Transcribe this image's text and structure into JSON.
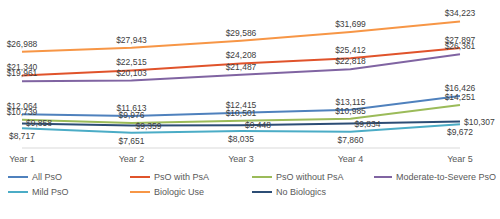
{
  "chart_data": {
    "type": "line",
    "categories": [
      "Year 1",
      "Year 2",
      "Year 3",
      "Year 4",
      "Year 5"
    ],
    "ylim": [
      4000,
      36000
    ],
    "tick_labels": "x",
    "data_labels": true,
    "legend": "bottom",
    "series": [
      {
        "name": "All PsO",
        "color": "#4f81bd",
        "values": [
          12064,
          11613,
          12415,
          13115,
          16426
        ],
        "value_labels": [
          "$12,064",
          "$11,613",
          "$12,415",
          "$13,115",
          "$16,426"
        ]
      },
      {
        "name": "PsO with PsA",
        "color": "#e0532b",
        "values": [
          21340,
          22515,
          24208,
          25412,
          27897
        ],
        "value_labels": [
          "$21,340",
          "$22,515",
          "$24,208",
          "$25,412",
          "$27,897"
        ]
      },
      {
        "name": "PsO without PsA",
        "color": "#9bbb59",
        "values": [
          10739,
          9976,
          10501,
          10985,
          14251
        ],
        "value_labels": [
          "$10,739",
          "$9,976",
          "$10,501",
          "$10,985",
          "$14,251"
        ]
      },
      {
        "name": "Moderate-to-Severe PsO",
        "color": "#8064a2",
        "values": [
          19961,
          20103,
          21487,
          22818,
          26361
        ],
        "value_labels": [
          "$19,961",
          "$20,103",
          "$21,487",
          "$22,818",
          "$26,361"
        ]
      },
      {
        "name": "Mild PsO",
        "color": "#4bacc6",
        "values": [
          8717,
          7651,
          8035,
          7860,
          9672
        ],
        "value_labels": [
          "$8,717",
          "$7,651",
          "$8,035",
          "$7,860",
          "$9,672"
        ]
      },
      {
        "name": "Biologic Use",
        "color": "#f79646",
        "values": [
          26988,
          27943,
          29586,
          31699,
          34223
        ],
        "value_labels": [
          "$26,988",
          "$27,943",
          "$29,586",
          "$31,699",
          "$34,223"
        ]
      },
      {
        "name": "No Biologics",
        "color": "#2c4d75",
        "values": [
          9858,
          9359,
          9448,
          9834,
          10307
        ],
        "value_labels": [
          "$9,858",
          "$9,359",
          "$9,448",
          "$9,834",
          "$10,307"
        ]
      }
    ]
  }
}
